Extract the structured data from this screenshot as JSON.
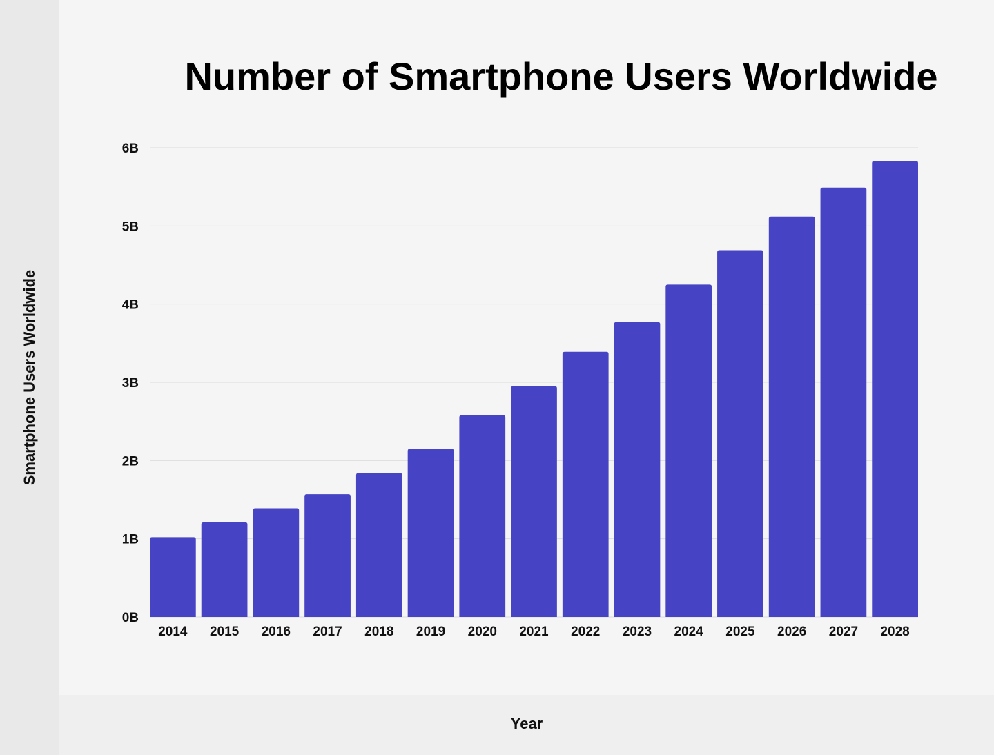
{
  "chart_data": {
    "type": "bar",
    "title": "Number of Smartphone Users Worldwide",
    "xlabel": "Year",
    "ylabel": "Smartphone Users Worldwide",
    "categories": [
      "2014",
      "2015",
      "2016",
      "2017",
      "2018",
      "2019",
      "2020",
      "2021",
      "2022",
      "2023",
      "2024",
      "2025",
      "2026",
      "2027",
      "2028"
    ],
    "values": [
      1.02,
      1.21,
      1.39,
      1.57,
      1.84,
      2.15,
      2.58,
      2.95,
      3.39,
      3.77,
      4.25,
      4.69,
      5.12,
      5.49,
      5.83
    ],
    "unit": "B",
    "ylim": [
      0,
      6
    ],
    "yticks": [
      "0B",
      "1B",
      "2B",
      "3B",
      "4B",
      "5B",
      "6B"
    ],
    "grid": true,
    "legend": "none",
    "bar_color": "#4743c5"
  }
}
